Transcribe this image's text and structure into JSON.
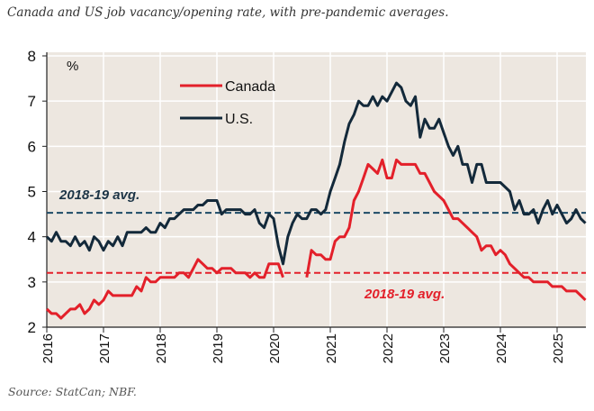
{
  "title": "Canada and US job vacancy/opening rate, with pre-pandemic averages.",
  "source": "Source: StatCan; NBF.",
  "chart_data": {
    "type": "line",
    "title": "Canada and US job vacancy/opening rate, with pre-pandemic averages.",
    "ylabel": "%",
    "xlabel": "",
    "ylim": [
      2,
      8
    ],
    "yticks": [
      "2",
      "3",
      "4",
      "5",
      "6",
      "7",
      "8"
    ],
    "xticks": [
      "2016",
      "2017",
      "2018",
      "2019",
      "2020",
      "2021",
      "2022",
      "2023",
      "2024",
      "2025"
    ],
    "start": "2016-01",
    "frequency": "monthly",
    "grid": true,
    "legend_position": "top-left",
    "series": [
      {
        "name": "Canada",
        "color": "#e3202a",
        "values": [
          2.4,
          2.3,
          2.3,
          2.2,
          2.3,
          2.4,
          2.4,
          2.5,
          2.3,
          2.4,
          2.6,
          2.5,
          2.6,
          2.8,
          2.7,
          2.7,
          2.7,
          2.7,
          2.7,
          2.9,
          2.8,
          3.1,
          3.0,
          3.0,
          3.1,
          3.1,
          3.1,
          3.1,
          3.2,
          3.2,
          3.1,
          3.3,
          3.5,
          3.4,
          3.3,
          3.3,
          3.2,
          3.3,
          3.3,
          3.3,
          3.2,
          3.2,
          3.2,
          3.1,
          3.2,
          3.1,
          3.1,
          3.4,
          3.4,
          3.4,
          3.1,
          null,
          null,
          null,
          null,
          3.1,
          3.7,
          3.6,
          3.6,
          3.5,
          3.5,
          3.9,
          4.0,
          4.0,
          4.2,
          4.8,
          5.0,
          5.3,
          5.6,
          5.5,
          5.4,
          5.7,
          5.3,
          5.3,
          5.7,
          5.6,
          5.6,
          5.6,
          5.6,
          5.4,
          5.4,
          5.2,
          5.0,
          4.9,
          4.8,
          4.6,
          4.4,
          4.4,
          4.3,
          4.2,
          4.1,
          4.0,
          3.7,
          3.8,
          3.8,
          3.6,
          3.7,
          3.6,
          3.4,
          3.3,
          3.2,
          3.1,
          3.1,
          3.0,
          3.0,
          3.0,
          3.0,
          2.9,
          2.9,
          2.9,
          2.8,
          2.8,
          2.8,
          2.7,
          2.6
        ]
      },
      {
        "name": "U.S.",
        "color": "#13293a",
        "values": [
          4.0,
          3.9,
          4.1,
          3.9,
          3.9,
          3.8,
          4.0,
          3.8,
          3.9,
          3.7,
          4.0,
          3.9,
          3.7,
          3.9,
          3.8,
          4.0,
          3.8,
          4.1,
          4.1,
          4.1,
          4.1,
          4.2,
          4.1,
          4.1,
          4.3,
          4.2,
          4.4,
          4.4,
          4.5,
          4.6,
          4.6,
          4.6,
          4.7,
          4.7,
          4.8,
          4.8,
          4.8,
          4.5,
          4.6,
          4.6,
          4.6,
          4.6,
          4.5,
          4.5,
          4.6,
          4.3,
          4.2,
          4.5,
          4.4,
          3.8,
          3.4,
          4.0,
          4.3,
          4.5,
          4.4,
          4.4,
          4.6,
          4.6,
          4.5,
          4.6,
          5.0,
          5.3,
          5.6,
          6.1,
          6.5,
          6.7,
          7.0,
          6.9,
          6.9,
          7.1,
          6.9,
          7.1,
          7.0,
          7.2,
          7.4,
          7.3,
          7.0,
          6.9,
          7.1,
          6.2,
          6.6,
          6.4,
          6.4,
          6.6,
          6.3,
          6.0,
          5.8,
          6.0,
          5.6,
          5.6,
          5.2,
          5.6,
          5.6,
          5.2,
          5.2,
          5.2,
          5.2,
          5.1,
          5.0,
          4.6,
          4.8,
          4.5,
          4.5,
          4.6,
          4.3,
          4.6,
          4.8,
          4.5,
          4.7,
          4.5,
          4.3,
          4.4,
          4.6,
          4.4,
          4.3
        ]
      }
    ],
    "reference_lines": [
      {
        "name": "U.S. 2018-19 avg.",
        "label": "2018-19 avg.",
        "value": 4.53,
        "color": "#1d4a66"
      },
      {
        "name": "Canada 2018-19 avg.",
        "label": "2018-19 avg.",
        "value": 3.2,
        "color": "#e3202a"
      }
    ]
  }
}
